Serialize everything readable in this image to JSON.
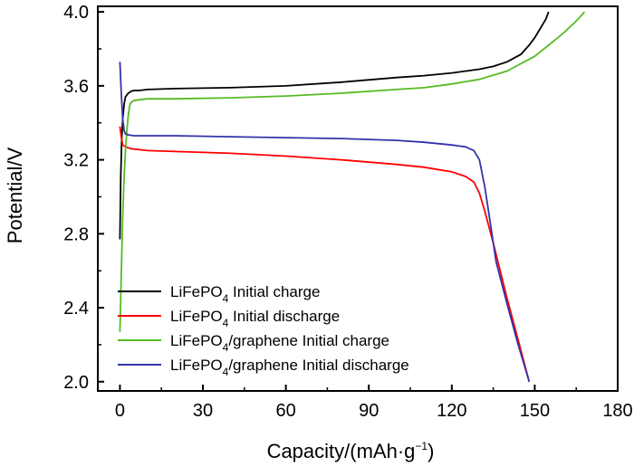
{
  "chart_data": {
    "type": "line",
    "title": "",
    "xlabel": "Capacity/(mAh·g",
    "xlabel_sup": "−1",
    "xlabel_close": ")",
    "ylabel": "Potential/V",
    "xlim": [
      -8,
      180
    ],
    "ylim": [
      1.95,
      4.03
    ],
    "xticks": [
      0,
      30,
      60,
      90,
      120,
      150,
      180
    ],
    "yticks": [
      2.0,
      2.4,
      2.8,
      3.2,
      3.6,
      4.0
    ],
    "ytick_labels": [
      "2.0",
      "2.4",
      "2.8",
      "3.2",
      "3.6",
      "4.0"
    ],
    "legend_position": "bottom-left",
    "series": [
      {
        "name": "LiFePO4 Initial charge",
        "legend_parts": [
          "LiFePO",
          "4",
          " Initial charge"
        ],
        "color": "#000000",
        "x": [
          0,
          0.3,
          0.6,
          1,
          1.5,
          2,
          3,
          4,
          5,
          7,
          10,
          20,
          40,
          60,
          80,
          100,
          110,
          120,
          130,
          135,
          140,
          145,
          148,
          150,
          152,
          154,
          155
        ],
        "y": [
          2.77,
          3.1,
          3.3,
          3.42,
          3.5,
          3.54,
          3.56,
          3.57,
          3.575,
          3.575,
          3.58,
          3.585,
          3.59,
          3.6,
          3.62,
          3.645,
          3.655,
          3.67,
          3.69,
          3.705,
          3.73,
          3.77,
          3.82,
          3.86,
          3.91,
          3.96,
          4.0
        ]
      },
      {
        "name": "LiFePO4 Initial discharge",
        "legend_parts": [
          "LiFePO",
          "4",
          " Initial discharge"
        ],
        "color": "#ff0000",
        "x": [
          0,
          0.5,
          1,
          2,
          4,
          10,
          20,
          40,
          60,
          80,
          100,
          110,
          120,
          125,
          128,
          130,
          132,
          135,
          140,
          145,
          148
        ],
        "y": [
          3.38,
          3.32,
          3.28,
          3.27,
          3.26,
          3.25,
          3.245,
          3.235,
          3.22,
          3.2,
          3.175,
          3.16,
          3.135,
          3.11,
          3.08,
          3.02,
          2.92,
          2.75,
          2.45,
          2.17,
          2.0
        ]
      },
      {
        "name": "LiFePO4/graphene Initial charge",
        "legend_parts": [
          "LiFePO",
          "4",
          "/graphene Initial charge"
        ],
        "color": "#55bb22",
        "x": [
          0,
          0.5,
          1,
          1.5,
          2,
          2.5,
          3,
          3.5,
          4,
          5,
          7,
          10,
          20,
          40,
          60,
          80,
          100,
          110,
          120,
          130,
          140,
          150,
          155,
          160,
          165,
          168
        ],
        "y": [
          2.27,
          2.6,
          2.9,
          3.1,
          3.25,
          3.36,
          3.44,
          3.49,
          3.51,
          3.52,
          3.525,
          3.53,
          3.53,
          3.535,
          3.545,
          3.56,
          3.58,
          3.59,
          3.61,
          3.635,
          3.68,
          3.76,
          3.82,
          3.88,
          3.95,
          4.0
        ]
      },
      {
        "name": "LiFePO4/graphene Initial discharge",
        "legend_parts": [
          "LiFePO",
          "4",
          "/graphene Initial discharge"
        ],
        "color": "#3333aa",
        "x": [
          0,
          0.5,
          1,
          1.5,
          2,
          3,
          5,
          10,
          20,
          40,
          60,
          80,
          100,
          110,
          120,
          125,
          128,
          130,
          132,
          134,
          136,
          140,
          144,
          148
        ],
        "y": [
          3.73,
          3.55,
          3.42,
          3.36,
          3.34,
          3.335,
          3.33,
          3.33,
          3.33,
          3.325,
          3.32,
          3.315,
          3.305,
          3.295,
          3.28,
          3.27,
          3.25,
          3.2,
          3.05,
          2.85,
          2.65,
          2.42,
          2.2,
          2.0
        ]
      }
    ]
  }
}
